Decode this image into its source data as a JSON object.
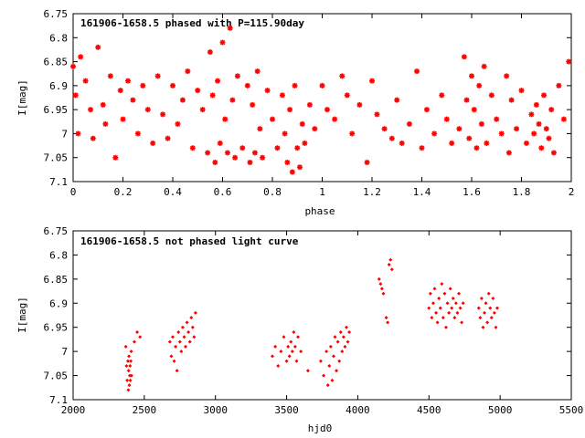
{
  "chart_data": [
    {
      "type": "scatter",
      "title": "161906-1658.5 phased with P=115.90day",
      "xlabel": "phase",
      "ylabel": "I[mag]",
      "xlim": [
        0,
        2
      ],
      "ylim": [
        7.1,
        6.75
      ],
      "y_inverted": true,
      "xticks": [
        "0",
        "0.2",
        "0.4",
        "0.6",
        "0.8",
        "1",
        "1.2",
        "1.4",
        "1.6",
        "1.8",
        "2"
      ],
      "yticks": [
        "6.75",
        "6.8",
        "6.85",
        "6.9",
        "6.95",
        "7",
        "7.05",
        "7.1"
      ],
      "marker": "star",
      "color": "#ff0000",
      "grid": false,
      "x": [
        0.0,
        0.01,
        0.02,
        0.03,
        0.05,
        0.07,
        0.08,
        0.1,
        0.12,
        0.13,
        0.15,
        0.17,
        0.19,
        0.2,
        0.22,
        0.24,
        0.26,
        0.28,
        0.3,
        0.32,
        0.34,
        0.36,
        0.38,
        0.4,
        0.42,
        0.44,
        0.46,
        0.48,
        0.5,
        0.52,
        0.54,
        0.55,
        0.56,
        0.57,
        0.58,
        0.59,
        0.6,
        0.61,
        0.62,
        0.63,
        0.64,
        0.65,
        0.66,
        0.68,
        0.7,
        0.71,
        0.72,
        0.73,
        0.74,
        0.75,
        0.76,
        0.78,
        0.8,
        0.82,
        0.84,
        0.85,
        0.86,
        0.87,
        0.88,
        0.89,
        0.9,
        0.91,
        0.92,
        0.93,
        0.95,
        0.97,
        1.0,
        1.02,
        1.05,
        1.08,
        1.1,
        1.12,
        1.15,
        1.18,
        1.2,
        1.22,
        1.25,
        1.28,
        1.3,
        1.32,
        1.35,
        1.38,
        1.4,
        1.42,
        1.45,
        1.48,
        1.5,
        1.52,
        1.55,
        1.57,
        1.58,
        1.59,
        1.6,
        1.61,
        1.62,
        1.63,
        1.64,
        1.65,
        1.66,
        1.68,
        1.7,
        1.72,
        1.74,
        1.75,
        1.76,
        1.78,
        1.8,
        1.82,
        1.84,
        1.85,
        1.86,
        1.87,
        1.88,
        1.89,
        1.9,
        1.91,
        1.92,
        1.93,
        1.95,
        1.97,
        1.99
      ],
      "y": [
        6.86,
        6.92,
        7.0,
        6.84,
        6.89,
        6.95,
        7.01,
        6.82,
        6.94,
        6.98,
        6.88,
        7.05,
        6.91,
        6.97,
        6.89,
        6.93,
        7.0,
        6.9,
        6.95,
        7.02,
        6.88,
        6.96,
        7.01,
        6.9,
        6.98,
        6.93,
        6.87,
        7.03,
        6.91,
        6.95,
        7.04,
        6.83,
        6.92,
        7.06,
        6.89,
        7.02,
        6.81,
        6.97,
        7.04,
        6.78,
        6.93,
        7.05,
        6.88,
        7.03,
        6.9,
        7.06,
        6.94,
        7.04,
        6.87,
        6.99,
        7.05,
        6.91,
        6.97,
        7.03,
        6.92,
        7.0,
        7.06,
        6.95,
        7.08,
        6.9,
        7.03,
        7.07,
        6.98,
        7.02,
        6.94,
        6.99,
        6.9,
        6.95,
        6.97,
        6.88,
        6.92,
        7.0,
        6.94,
        7.06,
        6.89,
        6.96,
        6.99,
        7.01,
        6.93,
        7.02,
        6.98,
        6.87,
        7.03,
        6.95,
        7.0,
        6.92,
        6.97,
        7.02,
        6.99,
        6.84,
        6.93,
        7.01,
        6.88,
        6.95,
        7.03,
        6.9,
        6.98,
        6.86,
        7.02,
        6.92,
        6.97,
        7.0,
        6.88,
        7.04,
        6.93,
        6.99,
        6.91,
        7.02,
        6.96,
        7.0,
        6.94,
        6.98,
        7.03,
        6.92,
        6.99,
        7.01,
        6.95,
        7.04,
        6.9,
        6.97,
        6.85
      ]
    },
    {
      "type": "scatter",
      "title": "161906-1658.5 not phased light curve",
      "xlabel": "hjd0",
      "ylabel": "I[mag]",
      "xlim": [
        2000,
        5500
      ],
      "ylim": [
        7.1,
        6.75
      ],
      "y_inverted": true,
      "xticks": [
        "2000",
        "2500",
        "3000",
        "3500",
        "4000",
        "4500",
        "5000",
        "5500"
      ],
      "yticks": [
        "6.75",
        "6.8",
        "6.85",
        "6.9",
        "6.95",
        "7",
        "7.05",
        "7.1"
      ],
      "marker": "diamond",
      "color": "#ff0000",
      "grid": false,
      "x": [
        2370,
        2375,
        2380,
        2385,
        2388,
        2390,
        2392,
        2395,
        2398,
        2400,
        2402,
        2405,
        2408,
        2410,
        2430,
        2450,
        2470,
        2680,
        2690,
        2700,
        2710,
        2720,
        2730,
        2740,
        2750,
        2760,
        2770,
        2780,
        2790,
        2800,
        2810,
        2820,
        2830,
        2840,
        2850,
        2860,
        3400,
        3420,
        3440,
        3460,
        3480,
        3500,
        3510,
        3520,
        3530,
        3540,
        3550,
        3560,
        3570,
        3580,
        3600,
        3650,
        3740,
        3760,
        3780,
        3790,
        3800,
        3810,
        3820,
        3830,
        3840,
        3850,
        3860,
        3870,
        3880,
        3890,
        3900,
        3910,
        3920,
        3930,
        3940,
        4150,
        4160,
        4170,
        4180,
        4200,
        4210,
        4220,
        4230,
        4240,
        4500,
        4510,
        4520,
        4530,
        4540,
        4550,
        4560,
        4570,
        4580,
        4590,
        4600,
        4610,
        4620,
        4630,
        4640,
        4650,
        4660,
        4670,
        4680,
        4690,
        4700,
        4710,
        4720,
        4730,
        4740,
        4850,
        4860,
        4870,
        4880,
        4890,
        4900,
        4910,
        4920,
        4930,
        4940,
        4950,
        4960,
        4970,
        4980
      ],
      "y": [
        6.99,
        7.03,
        7.06,
        7.02,
        7.08,
        7.04,
        7.01,
        7.07,
        7.05,
        7.03,
        7.06,
        7.02,
        7.0,
        7.05,
        6.98,
        6.96,
        6.97,
        6.98,
        7.01,
        6.97,
        7.02,
        6.99,
        7.04,
        6.96,
        6.98,
        7.0,
        6.95,
        6.97,
        6.99,
        6.94,
        6.96,
        6.98,
        6.93,
        6.95,
        6.97,
        6.92,
        7.01,
        6.99,
        7.03,
        7.0,
        6.97,
        7.02,
        6.99,
        7.01,
        6.98,
        7.0,
        6.96,
        6.99,
        7.02,
        6.97,
        7.0,
        7.04,
        7.02,
        7.05,
        7.0,
        7.07,
        7.03,
        6.99,
        7.06,
        7.01,
        6.97,
        7.04,
        6.98,
        7.02,
        6.96,
        7.0,
        6.97,
        6.99,
        6.95,
        6.98,
        6.96,
        6.85,
        6.86,
        6.87,
        6.88,
        6.93,
        6.94,
        6.82,
        6.81,
        6.83,
        6.91,
        6.88,
        6.93,
        6.9,
        6.87,
        6.92,
        6.94,
        6.89,
        6.91,
        6.86,
        6.93,
        6.88,
        6.95,
        6.9,
        6.92,
        6.87,
        6.91,
        6.89,
        6.93,
        6.9,
        6.92,
        6.88,
        6.91,
        6.94,
        6.9,
        6.91,
        6.93,
        6.89,
        6.95,
        6.92,
        6.9,
        6.94,
        6.88,
        6.91,
        6.93,
        6.89,
        6.92,
        6.95,
        6.91
      ]
    }
  ]
}
